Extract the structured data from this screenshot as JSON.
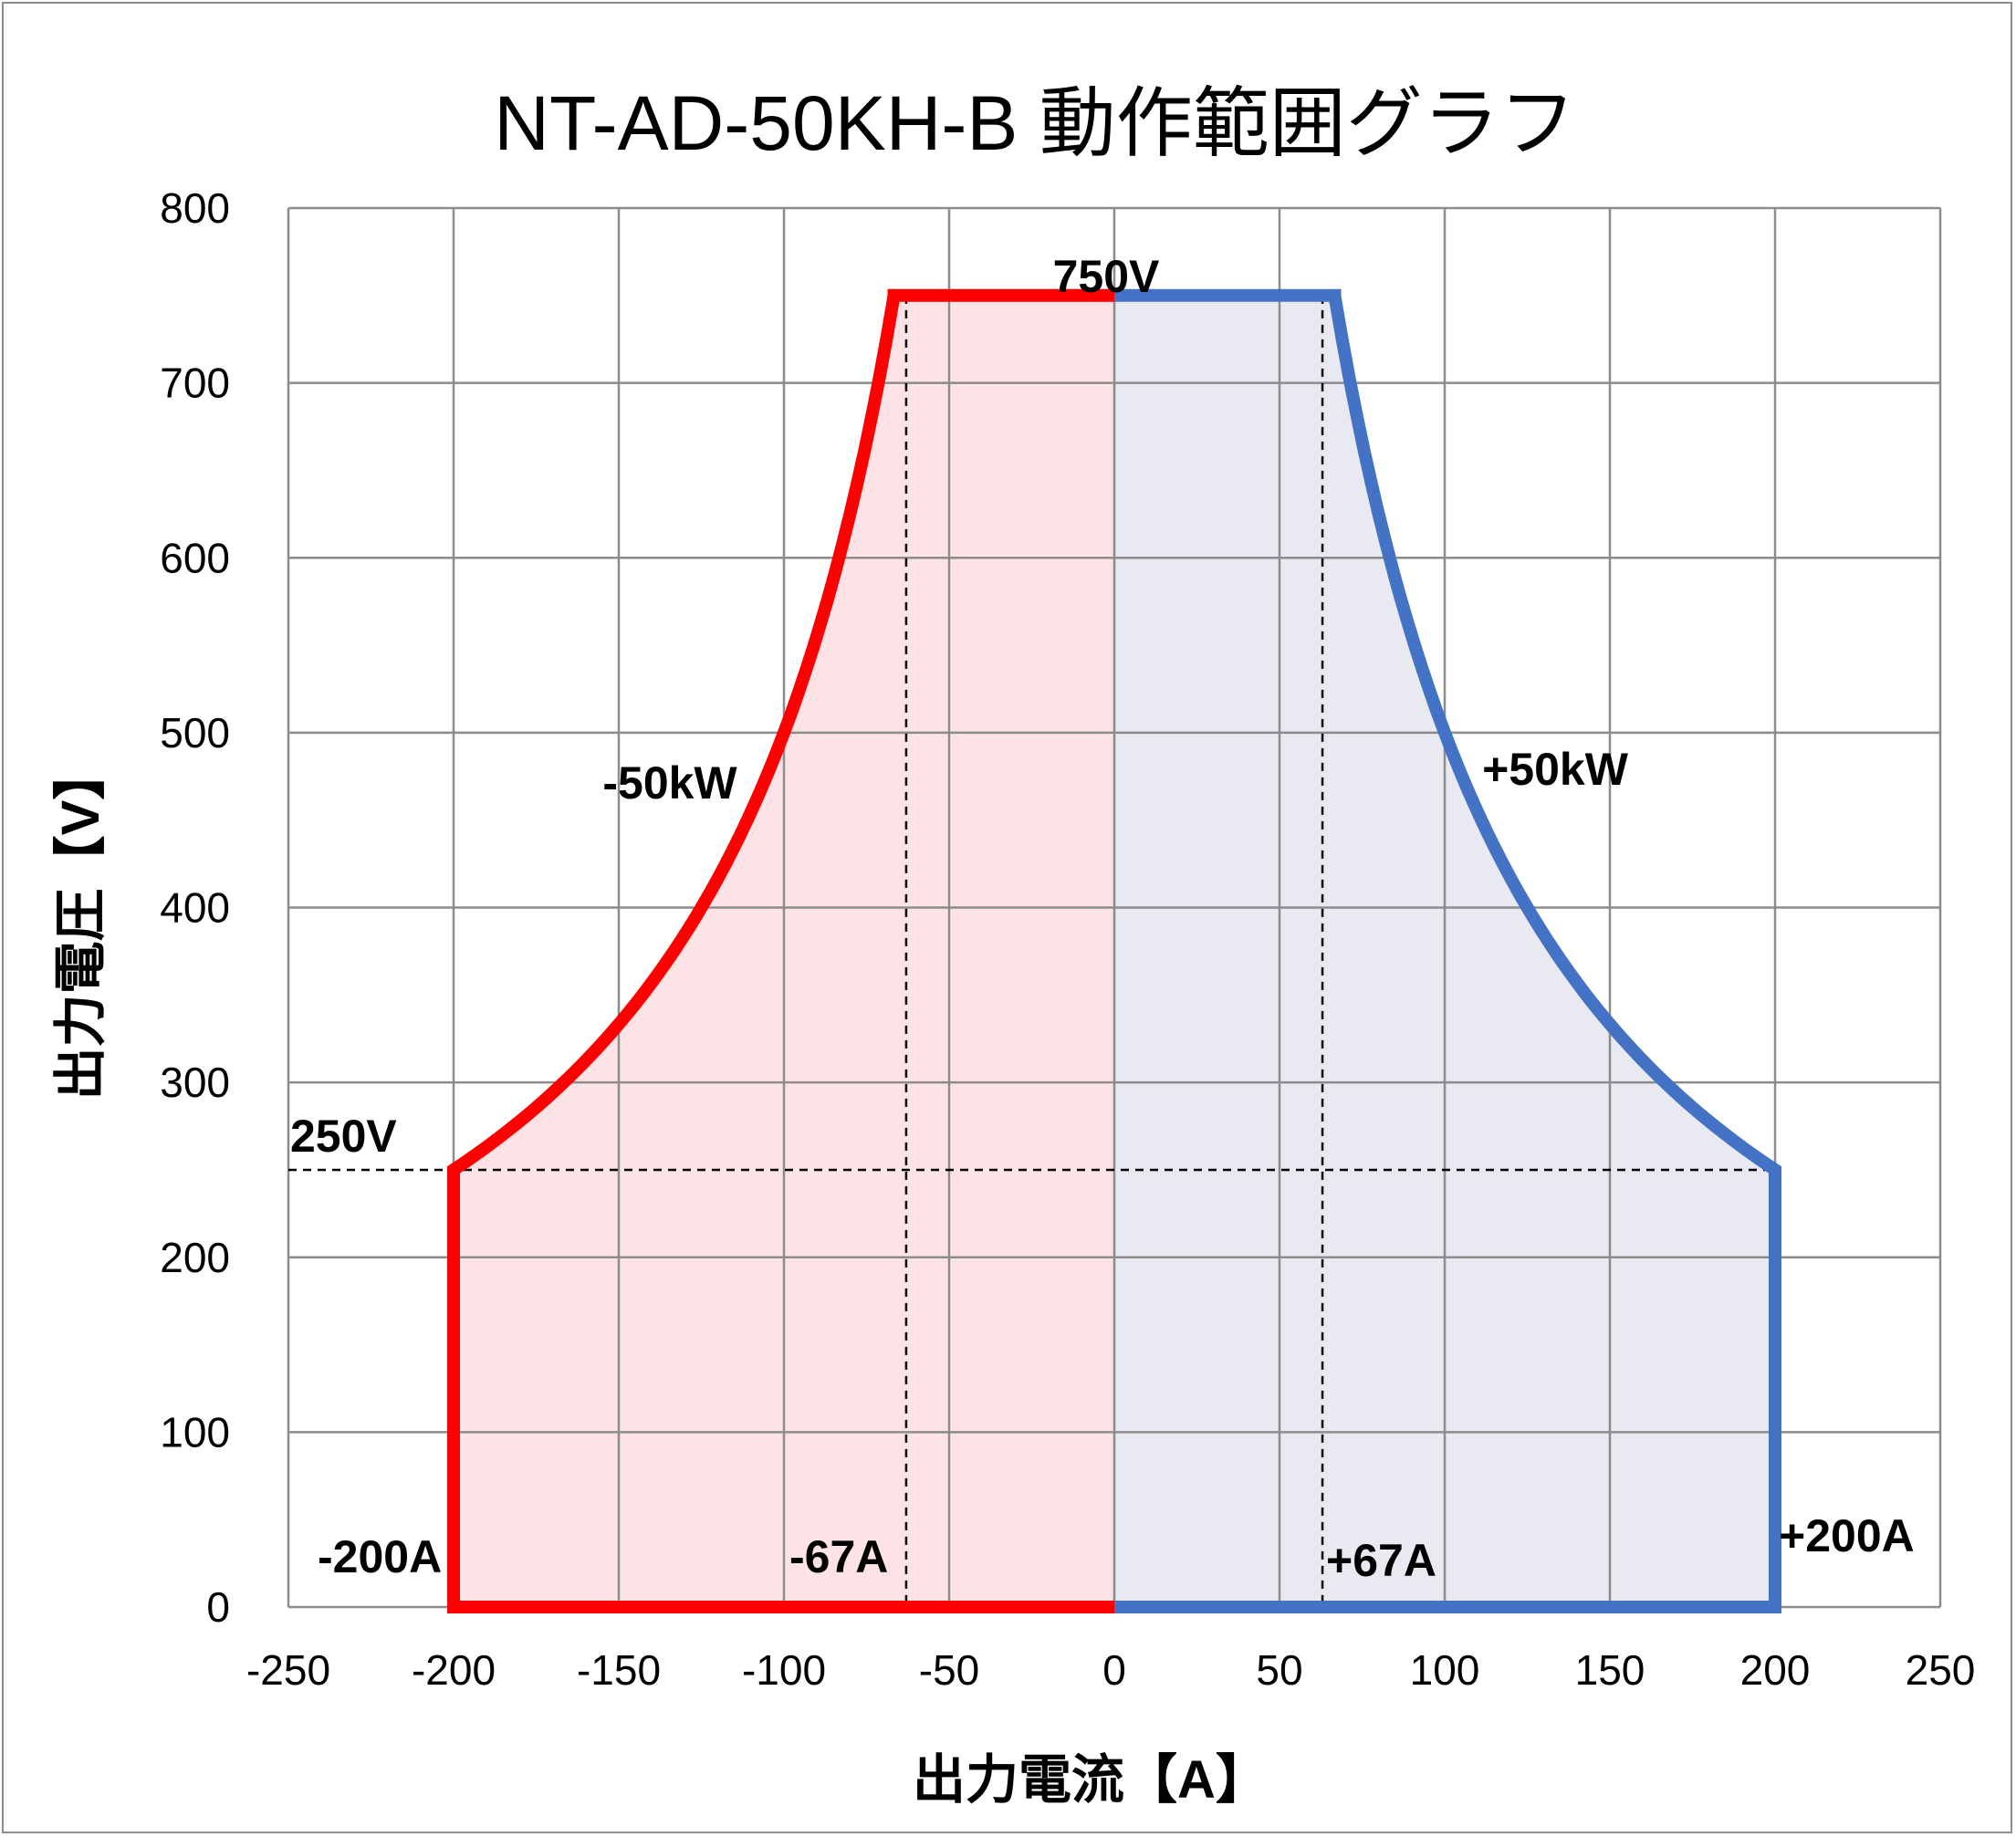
{
  "chart_data": {
    "type": "area",
    "title": "NT-AD-50KH-B 動作範囲グラフ",
    "xlabel": "出力電流【A】",
    "ylabel": "出力電圧【V】",
    "xlim": [
      -250,
      250
    ],
    "ylim": [
      0,
      800
    ],
    "xticks": [
      -250,
      -200,
      -150,
      -100,
      -50,
      0,
      50,
      100,
      150,
      200,
      250
    ],
    "yticks": [
      0,
      100,
      200,
      300,
      400,
      500,
      600,
      700,
      800
    ],
    "grid": true,
    "series": [
      {
        "name": "-50kW",
        "color": "#FF0000",
        "fill": "#FDE3E5",
        "power_kw": -50,
        "max_current": -200,
        "max_voltage": 750,
        "corner_voltage": 250,
        "corner_current": -66.7
      },
      {
        "name": "+50kW",
        "color": "#4472C4",
        "fill": "#E8E9F1",
        "power_kw": 50,
        "max_current": 200,
        "max_voltage": 750,
        "corner_voltage": 250,
        "corner_current": 66.7
      }
    ],
    "reference_lines": {
      "voltage": 250,
      "currents": [
        -63,
        63
      ],
      "color": "#000000"
    },
    "annotations": {
      "v750": "750V",
      "neg_power": "-50kW",
      "pos_power": "+50kW",
      "v250": "250V",
      "neg200": "-200A",
      "neg67": "-67A",
      "pos67": "+67A",
      "pos200": "+200A"
    }
  }
}
